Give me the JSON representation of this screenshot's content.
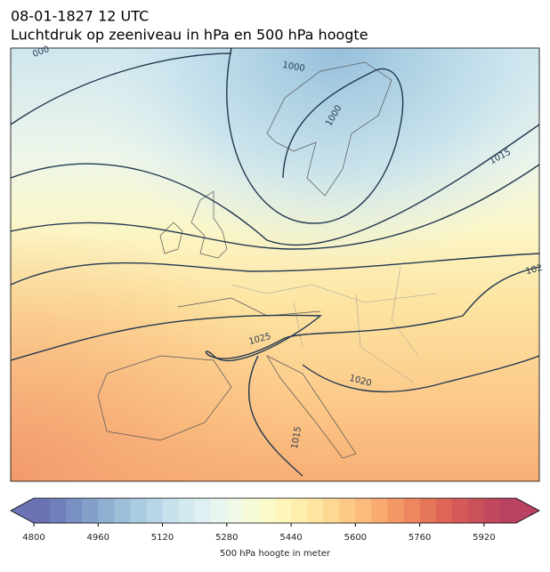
{
  "header": {
    "title": "08-01-1827 12 UTC",
    "subtitle": "Luchtdruk op zeeniveau in hPa en 500 hPa hoogte"
  },
  "contour_labels": [
    "000",
    "1000",
    "1000",
    "1015",
    "102",
    "1025",
    "1020",
    "1015"
  ],
  "colorbar": {
    "label": "500 hPa hoogte in meter",
    "lim": [
      4800,
      6000
    ],
    "ticks": [
      4800,
      4960,
      5120,
      5280,
      5440,
      5600,
      5760,
      5920
    ],
    "colors": [
      "#6b73b4",
      "#7080bb",
      "#7990c2",
      "#84a0c9",
      "#90b0d1",
      "#9dbfd8",
      "#abcbe0",
      "#b8d6e7",
      "#c6e1ec",
      "#d3e9f0",
      "#dff0f3",
      "#e9f5ef",
      "#f0f8e6",
      "#f6fad8",
      "#fbfacb",
      "#fef5bb",
      "#fdeead",
      "#fde4a0",
      "#fdd893",
      "#fcca86",
      "#fbbb7a",
      "#f8aa6f",
      "#f49866",
      "#ee875f",
      "#e6765a",
      "#dd6657",
      "#d35a58",
      "#ca505a",
      "#c2485e",
      "#b94263"
    ]
  }
}
